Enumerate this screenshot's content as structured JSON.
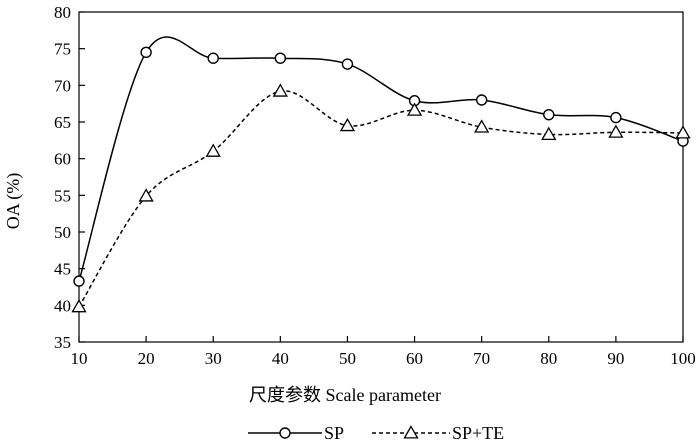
{
  "chart_data": {
    "type": "line",
    "title": "",
    "xlabel": "尺度参数  Scale parameter",
    "ylabel": "OA (%)",
    "x": [
      10,
      20,
      30,
      40,
      50,
      60,
      70,
      80,
      90,
      100
    ],
    "xlim": [
      10,
      100
    ],
    "ylim": [
      35,
      80
    ],
    "xticks": [
      "10",
      "20",
      "30",
      "40",
      "50",
      "60",
      "70",
      "80",
      "90",
      "100"
    ],
    "yticks": [
      "35",
      "40",
      "45",
      "50",
      "55",
      "60",
      "65",
      "70",
      "75",
      "80"
    ],
    "grid": false,
    "legend_position": "bottom",
    "series": [
      {
        "name": "SP",
        "values": [
          43.3,
          74.5,
          73.7,
          73.7,
          72.9,
          67.9,
          68.0,
          66.0,
          65.6,
          62.4
        ],
        "line_style": "solid",
        "marker": "circle",
        "color": "#000000"
      },
      {
        "name": "SP+TE",
        "values": [
          39.8,
          54.9,
          61.0,
          69.2,
          64.5,
          66.6,
          64.3,
          63.3,
          63.6,
          63.5
        ],
        "line_style": "dashed",
        "marker": "triangle",
        "color": "#000000"
      }
    ]
  }
}
